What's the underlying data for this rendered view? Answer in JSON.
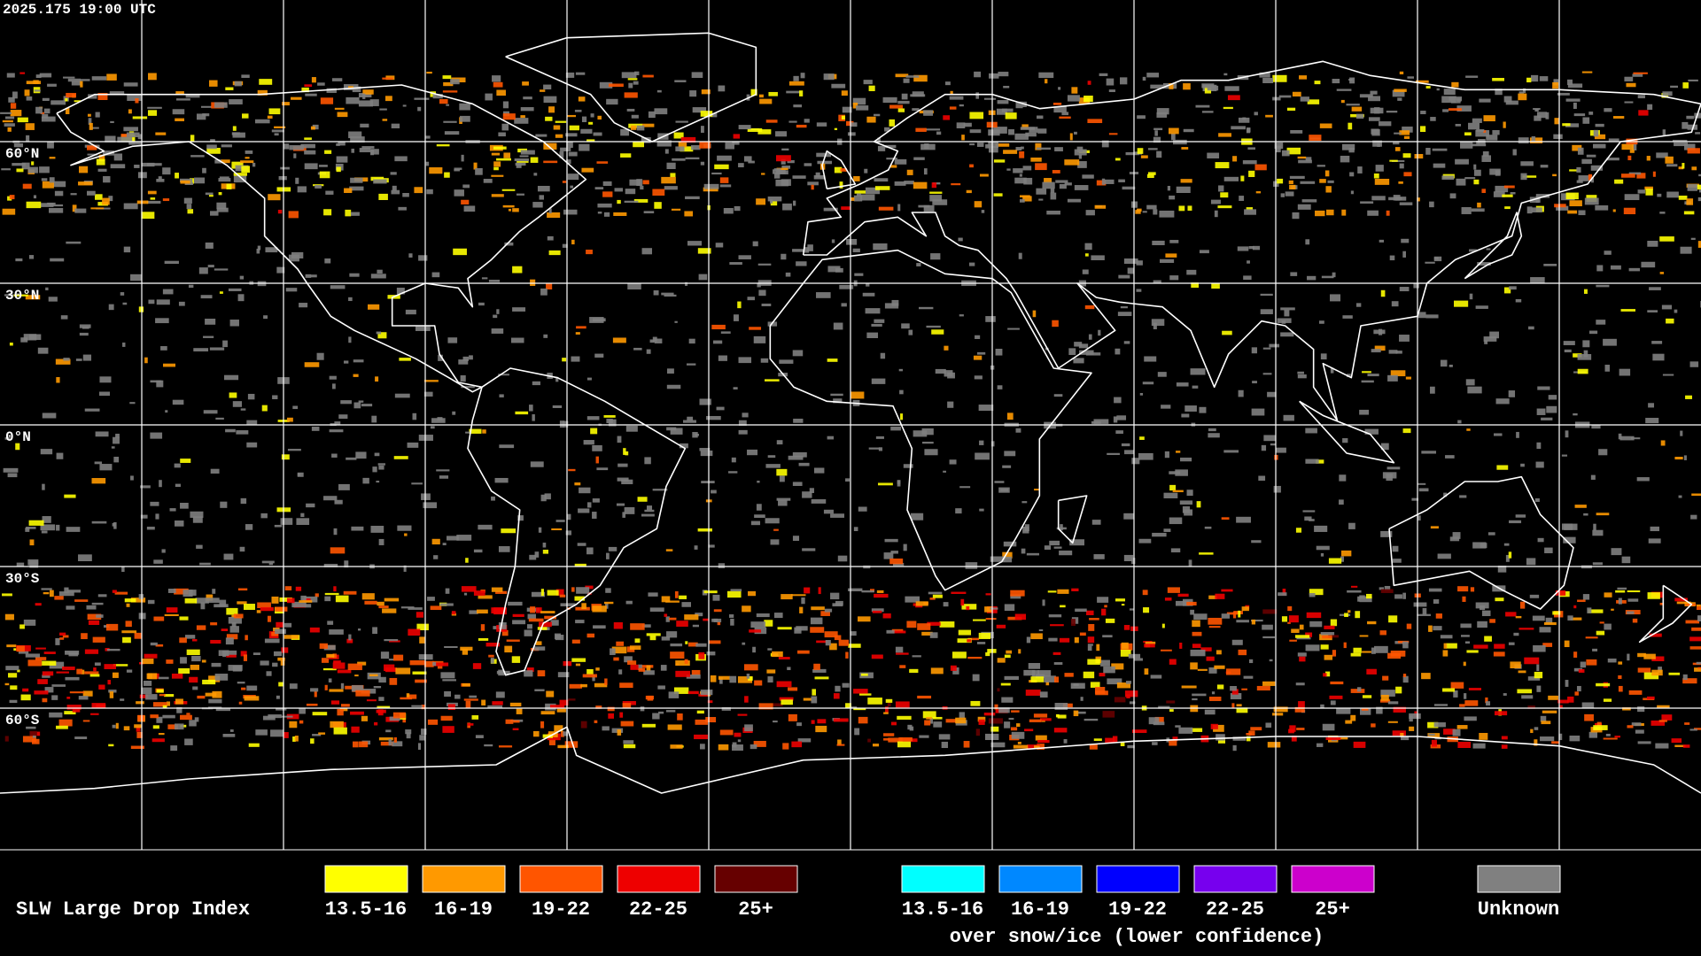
{
  "timestamp": "2025.175 19:00 UTC",
  "latitude_labels": [
    "60°N",
    "30°N",
    "0°N",
    "30°S",
    "60°S"
  ],
  "legend": {
    "title": "SLW Large Drop Index",
    "groups": [
      {
        "items": [
          {
            "label": "13.5-16",
            "color": "#ffff00"
          },
          {
            "label": "16-19",
            "color": "#ff9900"
          },
          {
            "label": "19-22",
            "color": "#ff5500"
          },
          {
            "label": "22-25",
            "color": "#ee0000"
          },
          {
            "label": "25+",
            "color": "#660000"
          }
        ]
      },
      {
        "items": [
          {
            "label": "13.5-16",
            "color": "#00ffff"
          },
          {
            "label": "16-19",
            "color": "#0088ff"
          },
          {
            "label": "19-22",
            "color": "#0000ff"
          },
          {
            "label": "22-25",
            "color": "#7700ee"
          },
          {
            "label": "25+",
            "color": "#cc00cc"
          }
        ],
        "caption": "over snow/ice (lower confidence)"
      },
      {
        "items": [
          {
            "label": "Unknown",
            "color": "#808080"
          }
        ]
      }
    ]
  }
}
